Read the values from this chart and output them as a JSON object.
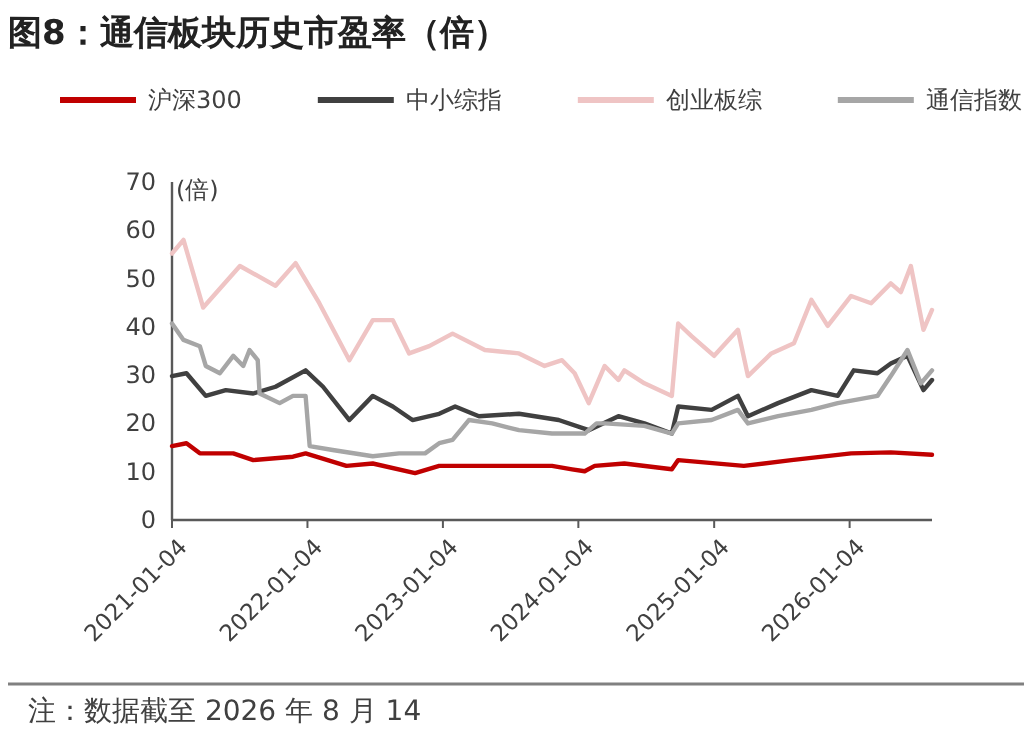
{
  "chart_data": {
    "type": "line",
    "title": "图8：通信板块历史市盈率（倍）",
    "ylabel": "(倍)",
    "legend": "top",
    "grid": false,
    "xlim": [
      "2021-01-04",
      "2026-08-14"
    ],
    "xticks": [
      "2021-01-04",
      "2022-01-04",
      "2023-01-04",
      "2024-01-04",
      "2025-01-04",
      "2026-01-04"
    ],
    "ylim": [
      0,
      70
    ],
    "yticks": [
      0,
      10,
      20,
      30,
      40,
      50,
      60,
      70
    ],
    "annotations": [
      "注：数据截至 2026 年 8 月 14"
    ],
    "series": [
      {
        "name": "沪深300",
        "color": "#c00000",
        "x": [
          "2021-01-04",
          "2021-02-12",
          "2021-03-20",
          "2021-06-18",
          "2021-08-11",
          "2021-11-26",
          "2021-12-30",
          "2022-04-19",
          "2022-06-29",
          "2022-10-21",
          "2022-12-25",
          "2023-05-17",
          "2023-10-25",
          "2023-12-18",
          "2024-01-21",
          "2024-02-17",
          "2024-05-07",
          "2024-09-12",
          "2024-09-29",
          "2025-03-25",
          "2025-07-31",
          "2026-01-08",
          "2026-04-25",
          "2026-08-14"
        ],
        "values": [
          15.3,
          15.9,
          13.8,
          13.8,
          12.4,
          13.1,
          13.8,
          11.2,
          11.7,
          9.7,
          11.2,
          11.2,
          11.2,
          10.5,
          10.1,
          11.2,
          11.7,
          10.5,
          12.4,
          11.2,
          12.4,
          13.8,
          14,
          13.5
        ]
      },
      {
        "name": "中小综指",
        "color": "#404040",
        "x": [
          "2021-01-04",
          "2021-02-12",
          "2021-04-05",
          "2021-05-29",
          "2021-08-11",
          "2021-10-10",
          "2021-12-30",
          "2022-02-15",
          "2022-04-27",
          "2022-06-29",
          "2022-08-22",
          "2022-10-14",
          "2022-12-25",
          "2023-02-06",
          "2023-04-11",
          "2023-07-28",
          "2023-11-12",
          "2024-02-01",
          "2024-04-21",
          "2024-06-30",
          "2024-09-12",
          "2024-09-29",
          "2024-12-28",
          "2025-03-09",
          "2025-04-05",
          "2025-06-25",
          "2025-09-23",
          "2025-12-03",
          "2026-01-15",
          "2026-03-20",
          "2026-04-25",
          "2026-06-09",
          "2026-07-22",
          "2026-08-14"
        ],
        "values": [
          29.8,
          30.4,
          25.7,
          26.9,
          26.2,
          27.6,
          31,
          27.6,
          20.7,
          25.7,
          23.5,
          20.7,
          22,
          23.5,
          21.5,
          22,
          20.7,
          18.6,
          21.5,
          20,
          17.9,
          23.5,
          22.8,
          25.7,
          21.5,
          24.2,
          26.9,
          25.7,
          31,
          30.4,
          32.4,
          34,
          26.9,
          29
        ]
      },
      {
        "name": "创业板综",
        "color": "#efc4c4",
        "x": [
          "2021-01-04",
          "2021-02-04",
          "2021-03-29",
          "2021-07-06",
          "2021-10-10",
          "2021-12-03",
          "2022-02-05",
          "2022-04-27",
          "2022-06-29",
          "2022-08-22",
          "2022-10-05",
          "2022-11-28",
          "2023-01-30",
          "2023-04-27",
          "2023-07-28",
          "2023-10-05",
          "2023-11-21",
          "2023-12-25",
          "2024-02-01",
          "2024-03-15",
          "2024-04-21",
          "2024-05-07",
          "2024-06-30",
          "2024-09-12",
          "2024-09-29",
          "2024-11-04",
          "2025-01-04",
          "2025-03-09",
          "2025-04-05",
          "2025-06-07",
          "2025-08-07",
          "2025-09-23",
          "2025-11-06",
          "2026-01-08",
          "2026-03-03",
          "2026-04-25",
          "2026-05-22",
          "2026-06-18",
          "2026-07-22",
          "2026-08-14"
        ],
        "values": [
          55.2,
          58,
          44,
          52.6,
          48.5,
          53.2,
          44.9,
          33.1,
          41.4,
          41.4,
          34.5,
          36,
          38.6,
          35.2,
          34.5,
          31.9,
          33.1,
          30.4,
          24.2,
          31.9,
          29,
          31,
          28.3,
          25.7,
          40.7,
          38.1,
          34,
          39.4,
          29.8,
          34.5,
          36.6,
          45.6,
          40.2,
          46.4,
          44.9,
          49,
          47.2,
          52.6,
          39.4,
          43.5
        ]
      },
      {
        "name": "通信指数",
        "color": "#a6a6a6",
        "x": [
          "2021-01-04",
          "2021-02-04",
          "2021-03-20",
          "2021-04-05",
          "2021-05-13",
          "2021-06-18",
          "2021-07-15",
          "2021-08-01",
          "2021-08-23",
          "2021-08-28",
          "2021-10-21",
          "2021-11-26",
          "2021-12-30",
          "2022-01-10",
          "2022-03-13",
          "2022-06-29",
          "2022-09-08",
          "2022-11-17",
          "2022-12-25",
          "2023-01-30",
          "2023-03-15",
          "2023-05-17",
          "2023-07-28",
          "2023-10-25",
          "2024-01-21",
          "2024-02-22",
          "2024-03-15",
          "2024-06-30",
          "2024-09-12",
          "2024-09-29",
          "2024-12-28",
          "2025-03-09",
          "2025-04-05",
          "2025-06-25",
          "2025-09-23",
          "2025-12-03",
          "2026-03-20",
          "2026-04-25",
          "2026-06-09",
          "2026-07-15",
          "2026-08-14"
        ],
        "values": [
          40.7,
          37.3,
          36,
          31.9,
          30.4,
          34,
          31.9,
          35.2,
          33.1,
          26.2,
          24.2,
          25.7,
          25.7,
          15.3,
          14.5,
          13.2,
          13.8,
          13.8,
          15.9,
          16.6,
          20.7,
          20,
          18.6,
          17.9,
          17.9,
          20,
          20,
          19.5,
          17.9,
          20,
          20.7,
          22.8,
          20,
          21.5,
          22.8,
          24.2,
          25.7,
          29.8,
          35.2,
          28.3,
          31
        ]
      }
    ]
  }
}
